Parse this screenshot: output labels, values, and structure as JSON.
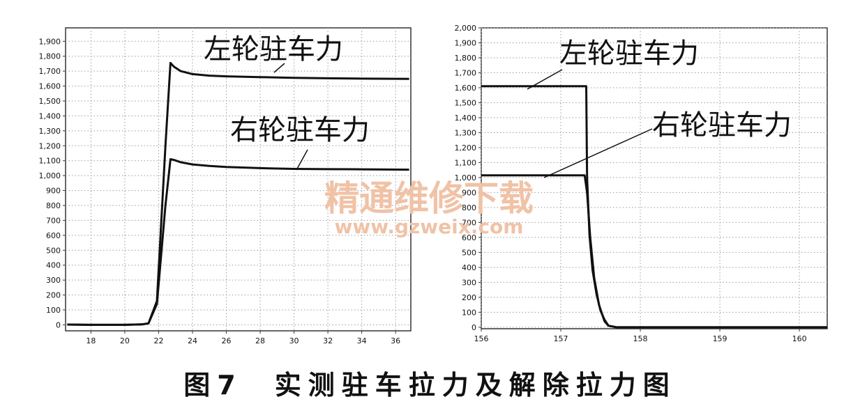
{
  "caption": {
    "label": "图7",
    "text": "实测驻车拉力及解除拉力图"
  },
  "watermark": {
    "line1": "精通维修下载",
    "line2": "www.gzweix.com",
    "color": "#f0c2a6"
  },
  "colors": {
    "line": "#111111",
    "grid": "#9a9a9a"
  },
  "chart_data": [
    {
      "type": "line",
      "xlim": [
        16.5,
        36.9
      ],
      "ylim": [
        -40,
        1990
      ],
      "xticks": [
        18,
        20,
        22,
        24,
        26,
        28,
        30,
        32,
        34,
        36
      ],
      "xtick_labels": [
        "18",
        "20",
        "22",
        "24",
        "26",
        "28",
        "30",
        "32",
        "34",
        "36"
      ],
      "yticks": [
        0,
        100,
        200,
        300,
        400,
        500,
        600,
        700,
        800,
        900,
        1000,
        1100,
        1200,
        1300,
        1400,
        1500,
        1600,
        1700,
        1800,
        1900
      ],
      "ytick_labels": [
        "0",
        "100",
        "200",
        "300",
        "400",
        "500",
        "600",
        "700",
        "800",
        "900",
        "1,000",
        "1,100",
        "1,200",
        "1,300",
        "1,400",
        "1,500",
        "1,600",
        "1,700",
        "1,800",
        "1,900"
      ],
      "grid": true,
      "series": [
        {
          "name": "左轮驻车力",
          "x": [
            16.6,
            18,
            20,
            21.0,
            21.4,
            21.9,
            22.4,
            22.7,
            22.9,
            23.3,
            24,
            25,
            26,
            28,
            30,
            32,
            34,
            36.8
          ],
          "y": [
            2,
            0,
            0,
            3,
            10,
            160,
            1200,
            1755,
            1730,
            1700,
            1680,
            1670,
            1665,
            1660,
            1655,
            1652,
            1650,
            1648
          ]
        },
        {
          "name": "右轮驻车力",
          "x": [
            16.6,
            18,
            20,
            21.0,
            21.4,
            21.9,
            22.4,
            22.7,
            22.9,
            23.3,
            24,
            25,
            26,
            28,
            30,
            32,
            34,
            36.8
          ],
          "y": [
            2,
            0,
            0,
            3,
            10,
            140,
            800,
            1110,
            1105,
            1090,
            1075,
            1065,
            1058,
            1050,
            1045,
            1043,
            1042,
            1040
          ]
        }
      ],
      "annotations": [
        {
          "text": "左轮驻车力",
          "target_x": 30,
          "target_y": 1660
        },
        {
          "text": "右轮驻车力",
          "target_x": 30,
          "target_y": 1043
        }
      ]
    },
    {
      "type": "line",
      "xlim": [
        156,
        160.35
      ],
      "ylim": [
        -10,
        2000
      ],
      "xticks": [
        156,
        157,
        158,
        159,
        160
      ],
      "xtick_labels": [
        "156",
        "157",
        "158",
        "159",
        "160"
      ],
      "yticks": [
        0,
        100,
        200,
        300,
        400,
        500,
        600,
        700,
        800,
        900,
        1000,
        1100,
        1200,
        1300,
        1400,
        1500,
        1600,
        1700,
        1800,
        1900,
        2000
      ],
      "ytick_labels": [
        "0",
        "100",
        "200",
        "300",
        "400",
        "500",
        "600",
        "700",
        "800",
        "900",
        "1,000",
        "1,100",
        "1,200",
        "1,300",
        "1,400",
        "1,500",
        "1,600",
        "1,700",
        "1,800",
        "1,900",
        "2,000"
      ],
      "grid": true,
      "series": [
        {
          "name": "左轮驻车力",
          "x": [
            156,
            156.5,
            157.0,
            157.32,
            157.33,
            157.36,
            157.4,
            157.45,
            157.5,
            157.55,
            157.6,
            157.7,
            158,
            159,
            160.35
          ],
          "y": [
            1610,
            1610,
            1610,
            1610,
            1000,
            620,
            380,
            220,
            110,
            50,
            10,
            0,
            0,
            0,
            0
          ]
        },
        {
          "name": "右轮驻车力",
          "x": [
            156,
            156.5,
            157.0,
            157.3,
            157.33,
            157.37,
            157.42,
            157.48,
            157.55,
            157.6,
            157.7,
            158,
            159,
            160.35
          ],
          "y": [
            1015,
            1015,
            1015,
            1015,
            900,
            600,
            330,
            150,
            40,
            10,
            0,
            0,
            0,
            0
          ]
        }
      ],
      "annotations": [
        {
          "text": "左轮驻车力",
          "target_x": 156.5,
          "target_y": 1610
        },
        {
          "text": "右轮驻车力",
          "target_x": 156.7,
          "target_y": 1015
        }
      ]
    }
  ]
}
